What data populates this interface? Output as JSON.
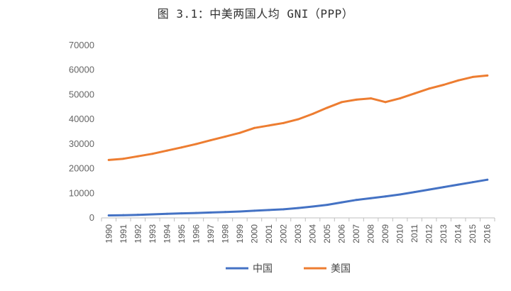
{
  "chart_data": {
    "type": "line",
    "title": "图 3.1：中美两国人均 GNI（PPP）",
    "x": [
      "1990",
      "1991",
      "1992",
      "1993",
      "1994",
      "1995",
      "1996",
      "1997",
      "1998",
      "1999",
      "2000",
      "2001",
      "2002",
      "2003",
      "2004",
      "2005",
      "2006",
      "2007",
      "2008",
      "2009",
      "2010",
      "2011",
      "2012",
      "2013",
      "2014",
      "2015",
      "2016"
    ],
    "ylim": [
      0,
      70000
    ],
    "yticks": [
      0,
      10000,
      20000,
      30000,
      40000,
      50000,
      60000,
      70000
    ],
    "grid": false,
    "legend": "bottom",
    "series": [
      {
        "name": "中国",
        "color": "#4472C4",
        "values": [
          1000,
          1100,
          1250,
          1450,
          1650,
          1850,
          2000,
          2200,
          2400,
          2600,
          2900,
          3200,
          3500,
          4000,
          4600,
          5300,
          6300,
          7300,
          8000,
          8700,
          9500,
          10500,
          11500,
          12500,
          13500,
          14500,
          15500
        ]
      },
      {
        "name": "美国",
        "color": "#ED7D31",
        "values": [
          23500,
          24000,
          25000,
          26000,
          27300,
          28600,
          30000,
          31500,
          33000,
          34500,
          36500,
          37500,
          38500,
          40000,
          42200,
          44700,
          47000,
          48000,
          48500,
          47000,
          48500,
          50500,
          52500,
          54000,
          55800,
          57200,
          57800
        ]
      }
    ]
  }
}
